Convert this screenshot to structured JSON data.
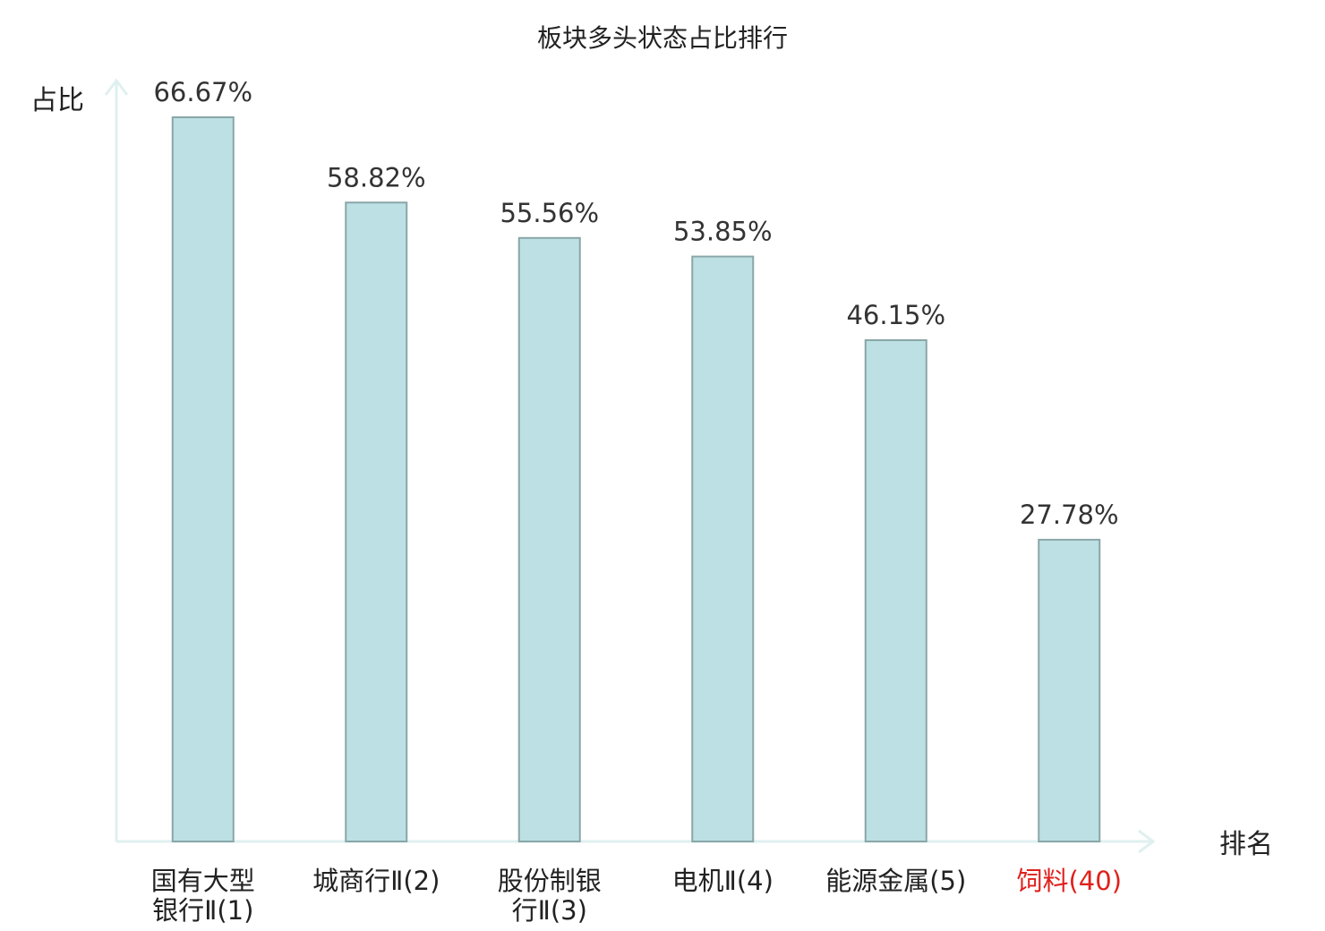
{
  "chart_data": {
    "type": "bar",
    "title": "板块多头状态占比排行",
    "ylabel": "占比",
    "xlabel": "排名",
    "ylim": [
      0,
      70
    ],
    "grid": false,
    "categories": [
      [
        "国有大型",
        "银行Ⅱ(1)"
      ],
      [
        "城商行Ⅱ(2)"
      ],
      [
        "股份制银",
        "行Ⅱ(3)"
      ],
      [
        "电机Ⅱ(4)"
      ],
      [
        "能源金属(5)"
      ],
      [
        "饲料(40)"
      ]
    ],
    "values": [
      66.67,
      58.82,
      55.56,
      53.85,
      46.15,
      27.78
    ],
    "value_labels": [
      "66.67%",
      "58.82%",
      "55.56%",
      "53.85%",
      "46.15%",
      "27.78%"
    ],
    "highlight_index": 5,
    "colors": {
      "bar_fill": "#bce0e3",
      "bar_stroke": "#8aa6a8",
      "axis": "#dff0ef",
      "highlight_text": "#e0201c"
    }
  }
}
